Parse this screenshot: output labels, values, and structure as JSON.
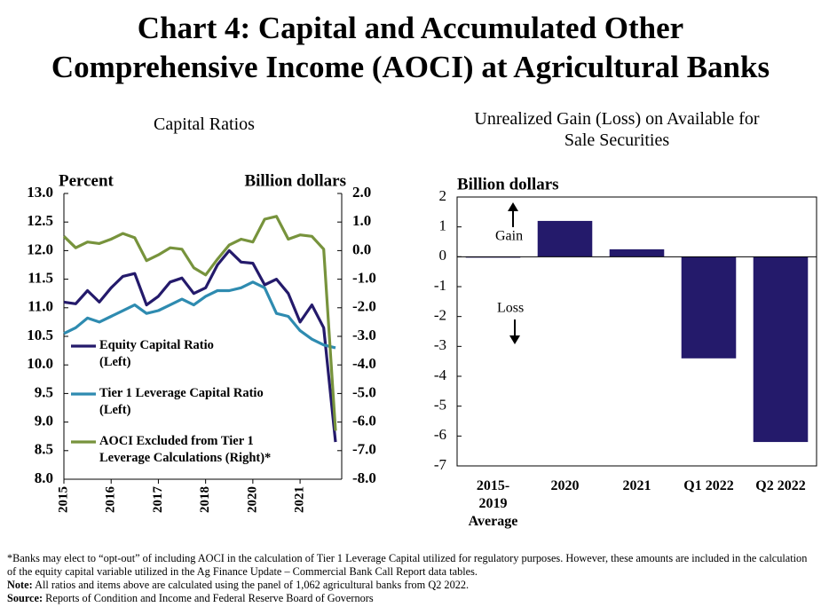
{
  "title": "Chart 4: Capital and Accumulated Other\nComprehensive Income (AOCI) at Agricultural Banks",
  "chart_data": [
    {
      "type": "line",
      "subtitle": "Capital Ratios",
      "y_label": "Percent",
      "y2_label": "Billion dollars",
      "categories": [
        "2015",
        null,
        null,
        null,
        "2016",
        null,
        null,
        null,
        "2017",
        null,
        null,
        null,
        "2018",
        null,
        null,
        null,
        "2020",
        null,
        null,
        null,
        "2021",
        null,
        null,
        null
      ],
      "ylim": [
        8,
        13
      ],
      "yticks": [
        {
          "value": 8,
          "label": "8.0"
        },
        {
          "value": 8.5,
          "label": "8.5"
        },
        {
          "value": 9,
          "label": "9.0"
        },
        {
          "value": 9.5,
          "label": "9.5"
        },
        {
          "value": 10,
          "label": "10.0"
        },
        {
          "value": 10.5,
          "label": "10.5"
        },
        {
          "value": 11,
          "label": "11.0"
        },
        {
          "value": 11.5,
          "label": "11.5"
        },
        {
          "value": 12,
          "label": "12.0"
        },
        {
          "value": 12.5,
          "label": "12.5"
        },
        {
          "value": 13,
          "label": "13.0"
        }
      ],
      "y2lim": [
        -8,
        2
      ],
      "y2ticks": [
        {
          "value": -8,
          "label": "-8.0"
        },
        {
          "value": -7,
          "label": "-7.0"
        },
        {
          "value": -6,
          "label": "-6.0"
        },
        {
          "value": -5,
          "label": "-5.0"
        },
        {
          "value": -4,
          "label": "-4.0"
        },
        {
          "value": -3,
          "label": "-3.0"
        },
        {
          "value": -2,
          "label": "-2.0"
        },
        {
          "value": -1,
          "label": "-1.0"
        },
        {
          "value": 0,
          "label": "0.0"
        },
        {
          "value": 1,
          "label": "1.0"
        },
        {
          "value": 2,
          "label": "2.0"
        }
      ],
      "series": [
        {
          "name": "Equity Capital Ratio\n(Left)",
          "color": "#241a6b",
          "values": [
            11.1,
            11.07,
            11.3,
            11.1,
            11.35,
            11.55,
            11.6,
            11.05,
            11.2,
            11.45,
            11.52,
            11.25,
            11.35,
            11.75,
            12.0,
            11.8,
            11.78,
            11.4,
            11.5,
            11.25,
            10.75,
            11.05,
            10.65,
            8.65
          ]
        },
        {
          "name": "Tier 1 Leverage Capital Ratio\n(Left)",
          "color": "#2e8bb0",
          "values": [
            10.55,
            10.65,
            10.82,
            10.75,
            10.85,
            10.95,
            11.05,
            10.9,
            10.95,
            11.05,
            11.15,
            11.05,
            11.2,
            11.3,
            11.3,
            11.35,
            11.45,
            11.35,
            10.9,
            10.85,
            10.6,
            10.45,
            10.35,
            10.3
          ]
        },
        {
          "name": "AOCI Excluded from Tier 1\nLeverage Calculations (Right)*",
          "color": "#77933c",
          "axis": "y2",
          "values": [
            0.5,
            0.1,
            0.3,
            0.25,
            0.4,
            0.6,
            0.45,
            -0.35,
            -0.15,
            0.1,
            0.05,
            -0.6,
            -0.85,
            -0.3,
            0.2,
            0.4,
            0.3,
            1.1,
            1.2,
            0.4,
            0.55,
            0.5,
            0.05,
            -6.3
          ]
        }
      ]
    },
    {
      "type": "bar",
      "subtitle": "Unrealized Gain (Loss) on Available for\nSale Securities",
      "y_label": "Billion dollars",
      "categories": [
        "2015-\n2019\nAverage",
        "2020",
        "2021",
        "Q1 2022",
        "Q2 2022"
      ],
      "values": [
        -0.02,
        1.2,
        0.25,
        -3.4,
        -6.2
      ],
      "color": "#241a6b",
      "ylim": [
        -7,
        2
      ],
      "yticks": [
        -7,
        -6,
        -5,
        -4,
        -3,
        -2,
        -1,
        0,
        1,
        2
      ],
      "annotations": [
        "Gain",
        "Loss"
      ]
    }
  ],
  "footnotes": [
    {
      "text": "*Banks may elect to “opt-out” of including  AOCI in the calculation of Tier 1 Leverage Capital utilized  for regulatory purposes. However, these amounts are included in the calculation of the equity capital variable utilized in the Ag Finance Update – Commercial Bank Call Report data tables."
    },
    {
      "label": "Note:",
      "text": "All ratios and items above are calculated using the panel of 1,062  agricultural banks from Q2 2022."
    },
    {
      "label": "Source:",
      "text": "Reports of Condition  and Income and Federal Reserve Board of Governors"
    }
  ]
}
